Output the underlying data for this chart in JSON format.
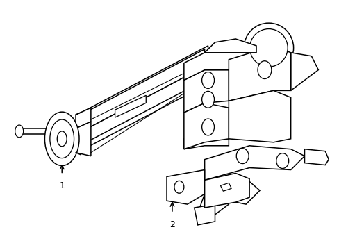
{
  "background_color": "#ffffff",
  "line_color": "#000000",
  "line_width": 1.1,
  "figure_width": 4.89,
  "figure_height": 3.6,
  "dpi": 100
}
